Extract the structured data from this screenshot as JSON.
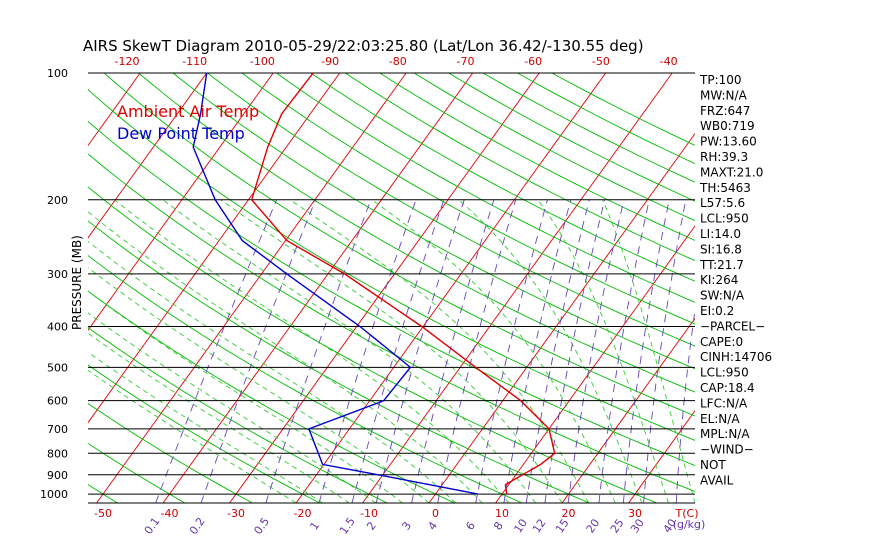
{
  "chart_data": {
    "type": "line",
    "title": "AIRS SkewT Diagram 2010-05-29/22:03:25.80 (Lat/Lon 36.42/-130.55 deg)",
    "ylabel": "PRESSURE (MB)",
    "ylim": [
      1050,
      100
    ],
    "y_scale": "log",
    "pressure_ticks": [
      100,
      200,
      300,
      400,
      500,
      600,
      700,
      800,
      900,
      1000
    ],
    "bottom_temp_ticks": [
      -50,
      -40,
      -30,
      -20,
      -10,
      0,
      10,
      20,
      30
    ],
    "bottom_unit_label": "T(C)",
    "top_temp_ticks": [
      -120,
      -110,
      -100,
      -90,
      -80,
      -70,
      -60,
      -50,
      -40
    ],
    "mixing_ratio_labels": [
      "0.1",
      "0.2",
      "0.5",
      "1",
      "1.5",
      "2",
      "3",
      "4",
      "6",
      "8",
      "10",
      "12",
      "15",
      "20",
      "25",
      "30",
      "40"
    ],
    "mixing_ratio_unit": "(g/kg)",
    "legend": [
      {
        "name": "Ambient Air Temp",
        "color": "#dd0000"
      },
      {
        "name": "Dew Point Temp",
        "color": "#0000cc"
      }
    ],
    "series": [
      {
        "name": "Ambient Air Temp",
        "color": "#dd0000",
        "points": [
          {
            "p": 1000,
            "t": 10.7
          },
          {
            "p": 950,
            "t": 9.5
          },
          {
            "p": 900,
            "t": 11.0
          },
          {
            "p": 850,
            "t": 12.6
          },
          {
            "p": 800,
            "t": 13.5
          },
          {
            "p": 700,
            "t": 10.0
          },
          {
            "p": 600,
            "t": 2.7
          },
          {
            "p": 500,
            "t": -7.7
          },
          {
            "p": 400,
            "t": -20.2
          },
          {
            "p": 300,
            "t": -37.5
          },
          {
            "p": 250,
            "t": -49.8
          },
          {
            "p": 200,
            "t": -59.5
          },
          {
            "p": 150,
            "t": -62.8
          },
          {
            "p": 125,
            "t": -64.3
          },
          {
            "p": 100,
            "t": -64.0
          }
        ]
      },
      {
        "name": "Dew Point Temp",
        "color": "#0000cc",
        "points": [
          {
            "p": 1000,
            "t": 6.4
          },
          {
            "p": 900,
            "t": -10.7
          },
          {
            "p": 850,
            "t": -20.2
          },
          {
            "p": 700,
            "t": -26.1
          },
          {
            "p": 600,
            "t": -17.9
          },
          {
            "p": 500,
            "t": -17.5
          },
          {
            "p": 400,
            "t": -29.5
          },
          {
            "p": 300,
            "t": -46.2
          },
          {
            "p": 250,
            "t": -56.5
          },
          {
            "p": 200,
            "t": -65.0
          },
          {
            "p": 150,
            "t": -74.0
          },
          {
            "p": 125,
            "t": -76.5
          },
          {
            "p": 100,
            "t": -80.0
          }
        ]
      }
    ],
    "grid": true,
    "guide_colors": {
      "isotherm": "#dd0000",
      "dry_adiabat": "#00bb00",
      "moist_adiabat": "#33cc33",
      "mixing_ratio": "#6644bb",
      "isobar": "#000000"
    }
  },
  "indices": [
    "TP:100",
    "MW:N/A",
    "FRZ:647",
    "WB0:719",
    "PW:13.60",
    "RH:39.3",
    "MAXT:21.0",
    "TH:5463",
    "L57:5.6",
    "LCL:950",
    "LI:14.0",
    "SI:16.8",
    "TT:21.7",
    "KI:264",
    "SW:N/A",
    "EI:0.2",
    "−PARCEL−",
    "CAPE:0",
    "CINH:14706",
    "LCL:950",
    "CAP:18.4",
    "LFC:N/A",
    "EL:N/A",
    "MPL:N/A",
    "−WIND−",
    " NOT",
    " AVAIL"
  ]
}
